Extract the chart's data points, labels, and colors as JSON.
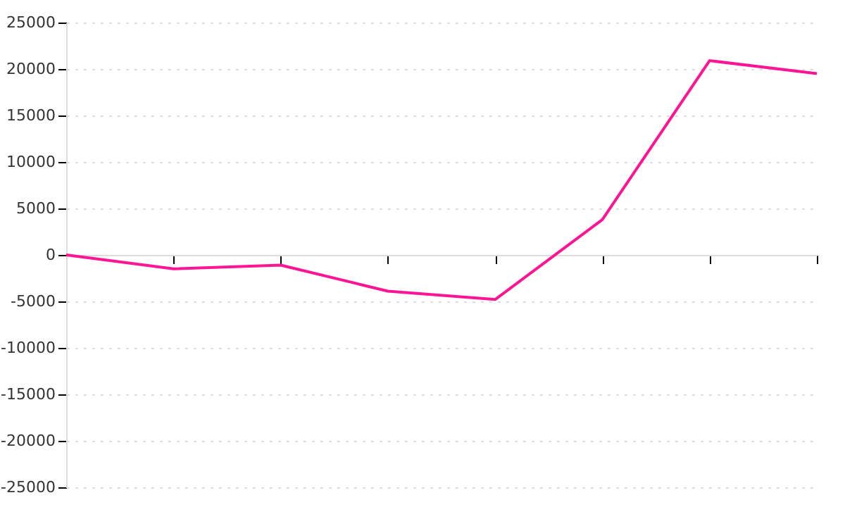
{
  "chart_data": {
    "type": "line",
    "categories": [
      null,
      null,
      null,
      null,
      null,
      null,
      null,
      null
    ],
    "series": [
      {
        "color": "#ff1493",
        "values": [
          0,
          -1500,
          -1100,
          -3900,
          -4800,
          3800,
          20900,
          19500
        ]
      }
    ],
    "ylim": [
      -25000,
      25000
    ],
    "yticks": [
      -25000,
      -20000,
      -15000,
      -10000,
      -5000,
      0,
      5000,
      10000,
      15000,
      20000,
      25000
    ],
    "grid": "y",
    "tick_labels": "y",
    "marker": "none",
    "line_style": "solid"
  }
}
